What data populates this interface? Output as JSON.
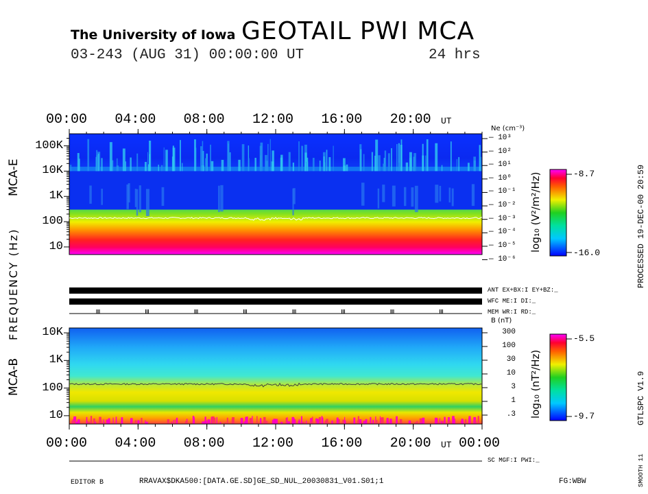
{
  "header": {
    "institution": "The University of Iowa",
    "instrument": "GEOTAIL PWI MCA",
    "date_line": "03-243 (AUG 31) 00:00:00 UT",
    "duration": "24 hrs"
  },
  "side_labels": {
    "processed": "PROCESSED 19-DEC-00  20:59",
    "gtlspc": "GTLSPC  V1.9",
    "smooth": "SMOOTH 11"
  },
  "footer": {
    "editor": "EDITOR B",
    "path": "RRAVAX$DKA500:[DATA.GE.SD]GE_SD_NUL_20030831_V01.S01;1",
    "fg": "FG:WBW"
  },
  "status_labels": {
    "ant": "ANT EX+BX:I  EY+BZ:_",
    "wfc": "WFC ME:I     DI:_",
    "mem": "MEM WR:I     RD:_",
    "sc": "SC MGF:I     PWI:_"
  },
  "chart_data": [
    {
      "type": "heatmap",
      "title": "MCA-E",
      "ylabel": "FREQUENCY (Hz)",
      "x_ticks": [
        "00:00",
        "04:00",
        "08:00",
        "12:00",
        "16:00",
        "20:00"
      ],
      "x_unit": "UT",
      "y_scale": "log",
      "ylim": [
        5,
        300000
      ],
      "y_ticks": [
        "10",
        "100",
        "1K",
        "10K",
        "100K"
      ],
      "y_tick_values": [
        10,
        100,
        1000,
        10000,
        100000
      ],
      "right_axis_label": "Ne (cm⁻³)",
      "right_ticks": [
        "10³",
        "10²",
        "10¹",
        "10⁰",
        "10⁻¹",
        "10⁻²",
        "10⁻³",
        "10⁻⁴",
        "10⁻⁵",
        "10⁻⁶"
      ],
      "colorbar_label": "log₁₀ (V²/m²/Hz)",
      "colorbar_range": [
        -16.0,
        -8.7
      ],
      "colorbar_max_label": "-8.7",
      "colorbar_min_label": "-16.0",
      "overlay_line": {
        "description_level_hz": 140
      }
    },
    {
      "type": "heatmap",
      "title": "MCA-B",
      "x_ticks": [
        "00:00",
        "04:00",
        "08:00",
        "12:00",
        "16:00",
        "20:00",
        "00:00"
      ],
      "x_unit": "UT",
      "y_scale": "log",
      "ylim": [
        5,
        15000
      ],
      "y_ticks": [
        "10",
        "100",
        "1K",
        "10K"
      ],
      "y_tick_values": [
        10,
        100,
        1000,
        10000
      ],
      "right_axis_label": "B (nT)",
      "right_ticks": [
        "300",
        "100",
        "30",
        "10",
        "3",
        "1",
        ".3"
      ],
      "colorbar_label": "log₁₀ (nT²/Hz)",
      "colorbar_range": [
        -9.7,
        -5.5
      ],
      "colorbar_max_label": "-5.5",
      "colorbar_min_label": "-9.7",
      "overlay_line": {
        "description_level_hz": 140
      }
    }
  ]
}
